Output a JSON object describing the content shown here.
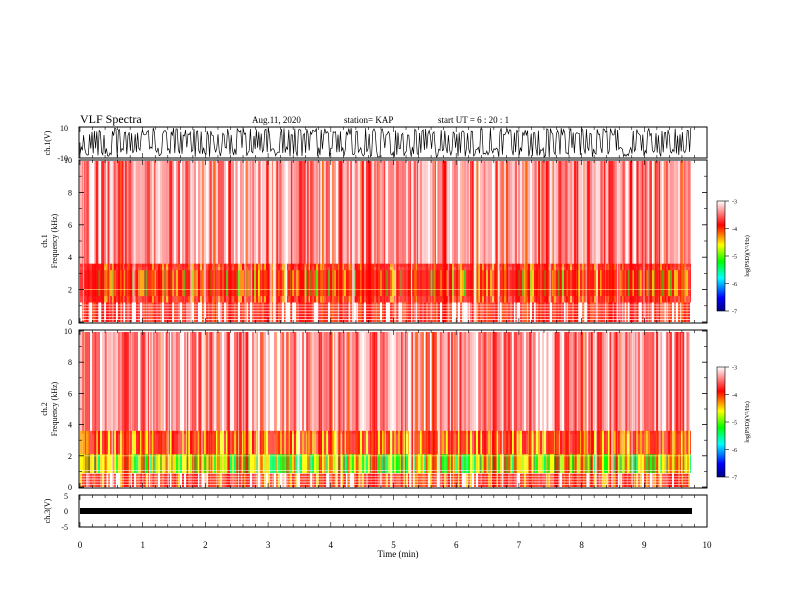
{
  "header": {
    "title": "VLF Spectra",
    "date": "Aug.11, 2020",
    "station": "station= KAP",
    "start": "start  UT =   6 : 20 : 1"
  },
  "colors": {
    "waveform": "#000000",
    "background": "#ffffff",
    "colorbar": [
      "#000080",
      "#0000ff",
      "#00ffff",
      "#00ff00",
      "#ffff00",
      "#ff0000",
      "#ffffff"
    ]
  },
  "chart_data": [
    {
      "type": "line",
      "name": "ch1-waveform",
      "ylabel": "ch.1(V)",
      "ylim": [
        -10,
        10
      ],
      "yticklabels": [
        "10",
        "-10"
      ],
      "xlim": [
        0,
        10
      ],
      "description_of_signal": "dense noisy waveform saturating between about -6 and 10 V"
    },
    {
      "type": "heatmap",
      "name": "ch1-spectrogram",
      "ylabel": "ch.1 Frequency (kHz)",
      "ylim": [
        0,
        10
      ],
      "yticks": [
        0,
        2,
        4,
        6,
        8,
        10
      ],
      "xlim": [
        0,
        10
      ],
      "colorbar": {
        "label": "log(PSD)(V²/Hz)",
        "ticks": [
          -3,
          -4,
          -5,
          -6,
          -7
        ],
        "range": [
          -7,
          -3
        ]
      },
      "bands_khz": [
        {
          "from": 0.0,
          "to": 1.2,
          "level": "red/white hum lines"
        },
        {
          "from": 1.2,
          "to": 3.5,
          "level": "red with yellow/green bursts"
        },
        {
          "from": 3.5,
          "to": 10,
          "level": "red/white sferics"
        }
      ]
    },
    {
      "type": "heatmap",
      "name": "ch2-spectrogram",
      "ylabel": "ch.2 Frequency (kHz)",
      "ylim": [
        0,
        10
      ],
      "yticks": [
        0,
        2,
        4,
        6,
        8,
        10
      ],
      "xlim": [
        0,
        10
      ],
      "colorbar": {
        "label": "log(PSD)(V²/Hz)",
        "ticks": [
          -3,
          -4,
          -5,
          -6,
          -7
        ],
        "range": [
          -7,
          -3
        ]
      },
      "bands_khz": [
        {
          "from": 0.0,
          "to": 1.0,
          "level": "red/white hum lines"
        },
        {
          "from": 1.0,
          "to": 2.0,
          "level": "yellow/green"
        },
        {
          "from": 2.0,
          "to": 3.5,
          "level": "red with yellow bursts"
        },
        {
          "from": 3.5,
          "to": 10,
          "level": "red/white sferics"
        }
      ]
    },
    {
      "type": "line",
      "name": "ch3-waveform",
      "ylabel": "ch.3(V)",
      "ylim": [
        -5,
        5
      ],
      "yticklabels": [
        "5",
        "0",
        "-5"
      ],
      "xlim": [
        0,
        10
      ],
      "description_of_signal": "flat thick trace near -1 V"
    }
  ],
  "xaxis": {
    "label": "Time  (min)",
    "ticks": [
      0,
      1,
      2,
      3,
      4,
      5,
      6,
      7,
      8,
      9,
      10
    ],
    "ticklabels": [
      "0",
      "1",
      "2",
      "3",
      "4",
      "5",
      "6",
      "7",
      "8",
      "9",
      "10"
    ]
  },
  "labels": {
    "ch1_volt": "ch.1(V)",
    "ch1_freq_a": "ch.1",
    "ch1_freq_b": "Frequency (kHz)",
    "ch2_freq_a": "ch.2",
    "ch2_freq_b": "Frequency (kHz)",
    "ch3_volt": "ch.3(V)",
    "cbar": "log(PSD)(V²/Hz)",
    "cbar_ticks": [
      "-3",
      "-4",
      "-5",
      "-6",
      "-7"
    ],
    "freq_ticks": [
      "0",
      "2",
      "4",
      "6",
      "8",
      "10"
    ],
    "ch1_ticks": [
      "10",
      "-10"
    ],
    "ch3_ticks": [
      "5",
      "0",
      "-5"
    ]
  }
}
